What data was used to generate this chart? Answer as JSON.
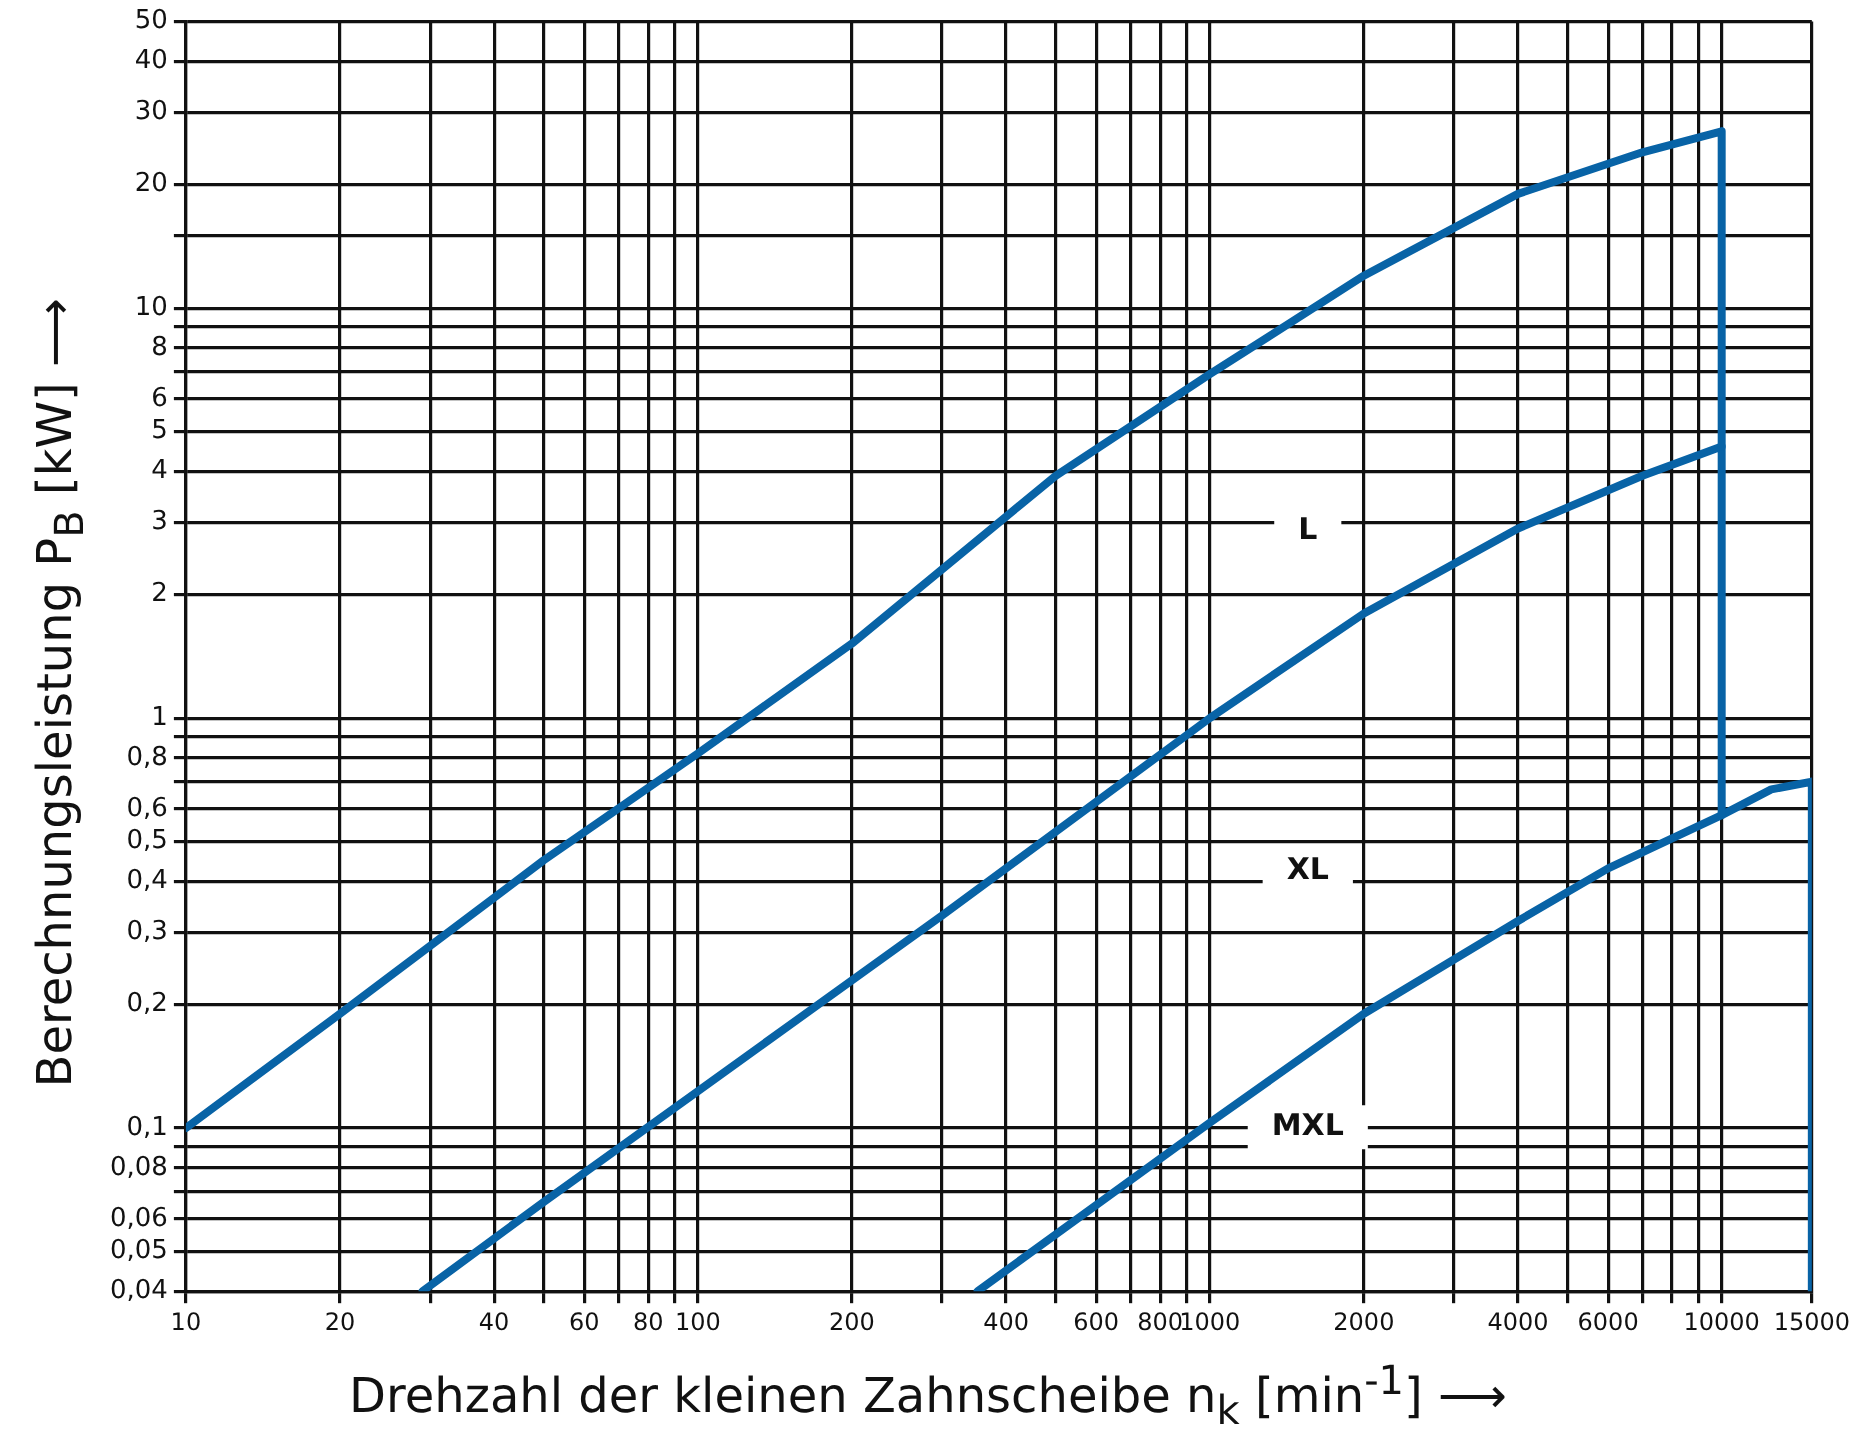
{
  "chart_data": {
    "type": "line",
    "xlabel": "Drehzahl der kleinen Zahnscheibe n$_{k}$ [min$^{-1}$] ⟶",
    "ylabel": "Berechnungsleistung P$_{B}$ [kW] ⟶",
    "log": "xy",
    "grid": true,
    "legend": false,
    "marker": "none",
    "line_style": "solid",
    "xlim": [
      10,
      15000
    ],
    "ylim": [
      0.04,
      50
    ],
    "xticks": [
      10,
      20,
      {
        "value": 30,
        "label": null
      },
      40,
      {
        "value": 50,
        "label": null
      },
      60,
      {
        "value": 70,
        "label": null
      },
      80,
      {
        "value": 90,
        "label": null
      },
      100,
      200,
      {
        "value": 300,
        "label": null
      },
      400,
      {
        "value": 500,
        "label": null
      },
      600,
      {
        "value": 700,
        "label": null
      },
      800,
      {
        "value": 900,
        "label": null
      },
      1000,
      2000,
      {
        "value": 3000,
        "label": null
      },
      4000,
      {
        "value": 5000,
        "label": null
      },
      6000,
      {
        "value": 7000,
        "label": null
      },
      {
        "value": 8000,
        "label": null
      },
      {
        "value": 9000,
        "label": null
      },
      10000,
      15000
    ],
    "yticks": [
      {
        "value": 0.04,
        "label": "0,04"
      },
      {
        "value": 0.05,
        "label": "0,05"
      },
      {
        "value": 0.06,
        "label": "0,06"
      },
      {
        "value": 0.07,
        "label": null
      },
      {
        "value": 0.08,
        "label": "0,08"
      },
      {
        "value": 0.09,
        "label": null
      },
      {
        "value": 0.1,
        "label": "0,1"
      },
      {
        "value": 0.2,
        "label": "0,2"
      },
      {
        "value": 0.3,
        "label": "0,3"
      },
      {
        "value": 0.4,
        "label": "0,4"
      },
      {
        "value": 0.5,
        "label": "0,5"
      },
      {
        "value": 0.6,
        "label": "0,6"
      },
      {
        "value": 0.7,
        "label": null
      },
      {
        "value": 0.8,
        "label": "0,8"
      },
      {
        "value": 0.9,
        "label": null
      },
      1,
      2,
      3,
      4,
      5,
      6,
      {
        "value": 7,
        "label": null
      },
      8,
      {
        "value": 9,
        "label": null
      },
      10,
      {
        "value": 15,
        "label": null
      },
      20,
      30,
      40,
      50
    ],
    "series": [
      {
        "color": "#0863a6",
        "x": [
          10,
          20,
          50,
          100,
          200,
          500,
          1000,
          2000,
          4000,
          7000,
          10000,
          10000
        ],
        "values": [
          0.1,
          0.19,
          0.45,
          0.82,
          1.52,
          3.9,
          6.9,
          12,
          19,
          24,
          27,
          4.6
        ]
      },
      {
        "color": "#0863a6",
        "x": [
          29,
          50,
          100,
          300,
          1000,
          2000,
          4000,
          7000,
          10000,
          10000
        ],
        "values": [
          0.04,
          0.066,
          0.123,
          0.33,
          1.0,
          1.8,
          2.9,
          3.9,
          4.6,
          0.58
        ]
      },
      {
        "color": "#0863a6",
        "x": [
          352,
          500,
          1000,
          2000,
          4000,
          6000,
          10000,
          12500,
          15000,
          15000
        ],
        "values": [
          0.04,
          0.055,
          0.103,
          0.19,
          0.32,
          0.43,
          0.58,
          0.67,
          0.7,
          0.04
        ]
      }
    ],
    "annotations": [
      "L",
      "XL",
      "MXL"
    ]
  }
}
